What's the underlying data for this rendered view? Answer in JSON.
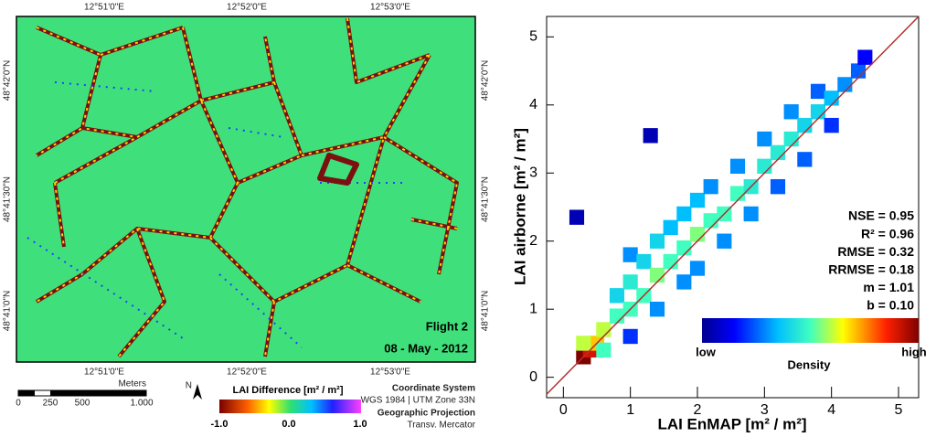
{
  "map": {
    "top_labels": [
      "12°51'0\"E",
      "12°52'0\"E",
      "12°53'0\"E"
    ],
    "bottom_labels": [
      "12°51'0\"E",
      "12°52'0\"E",
      "12°53'0\"E"
    ],
    "left_labels": [
      "48°42'0\"N",
      "48°41'30\"N",
      "48°41'0\"N"
    ],
    "right_labels": [
      "48°42'0\"N",
      "48°41'30\"N",
      "48°41'0\"N"
    ],
    "flight": "Flight 2",
    "date": "08 - May - 2012",
    "scale_unit": "Meters",
    "scale_labels": [
      "0",
      "250",
      "500",
      "1.000"
    ],
    "north": "N",
    "legend_title": "LAI Difference [m² / m²]",
    "legend_labels": [
      "-1.0",
      "0.0",
      "1.0"
    ],
    "crs_title": "Coordinate System",
    "crs": "WGS 1984 | UTM Zone 33N",
    "projection_title": "Geographic Projection",
    "projection": "Transv. Mercator"
  },
  "chart_data": {
    "type": "scatter",
    "x_label": "LAI EnMAP [m² / m²]",
    "y_label": "LAI airborne [m² / m²]",
    "xlim": [
      -0.25,
      5.3
    ],
    "ylim": [
      -0.3,
      5.3
    ],
    "xticks": [
      0,
      1,
      2,
      3,
      4,
      5
    ],
    "yticks": [
      0,
      1,
      2,
      3,
      4,
      5
    ],
    "line_color": "#b03030",
    "annotations": [
      "NSE = 0.95",
      "R² = 0.96",
      "RMSE = 0.32",
      "RRMSE = 0.18",
      "m = 1.01",
      "b = 0.10"
    ],
    "colorbar_labels": [
      "low",
      "high"
    ],
    "colorbar_title": "Density",
    "x": [
      0.3,
      0.4,
      0.5,
      0.3,
      0.6,
      0.6,
      0.8,
      0.8,
      1.0,
      1.0,
      1.0,
      1.2,
      1.2,
      1.4,
      1.4,
      1.4,
      1.6,
      1.6,
      1.8,
      1.8,
      1.8,
      2.0,
      2.0,
      2.0,
      2.2,
      2.2,
      2.4,
      2.4,
      2.6,
      2.6,
      2.8,
      2.8,
      3.0,
      3.0,
      3.2,
      3.2,
      3.4,
      3.4,
      3.6,
      3.6,
      3.8,
      3.8,
      4.0,
      4.0,
      4.2,
      4.4,
      4.5,
      0.2,
      1.3,
      1.0
    ],
    "y": [
      0.3,
      0.4,
      0.5,
      0.5,
      0.7,
      0.4,
      0.9,
      1.2,
      1.0,
      1.4,
      1.8,
      1.2,
      1.7,
      1.5,
      2.0,
      1.0,
      1.7,
      2.2,
      1.9,
      2.4,
      1.4,
      2.1,
      2.6,
      1.6,
      2.3,
      2.8,
      2.4,
      2.0,
      2.7,
      3.1,
      2.8,
      2.4,
      3.1,
      3.5,
      3.3,
      2.8,
      3.5,
      3.9,
      3.7,
      3.2,
      3.9,
      4.2,
      4.1,
      3.7,
      4.3,
      4.5,
      4.7,
      2.35,
      3.55,
      0.6
    ],
    "density": [
      1.0,
      0.9,
      0.7,
      0.6,
      0.6,
      0.5,
      0.5,
      0.4,
      0.5,
      0.45,
      0.3,
      0.5,
      0.4,
      0.55,
      0.4,
      0.3,
      0.5,
      0.35,
      0.5,
      0.35,
      0.3,
      0.55,
      0.35,
      0.3,
      0.5,
      0.3,
      0.5,
      0.3,
      0.5,
      0.3,
      0.45,
      0.3,
      0.45,
      0.3,
      0.45,
      0.25,
      0.45,
      0.3,
      0.4,
      0.25,
      0.4,
      0.25,
      0.35,
      0.2,
      0.3,
      0.25,
      0.15,
      0.05,
      0.05,
      0.2
    ]
  }
}
